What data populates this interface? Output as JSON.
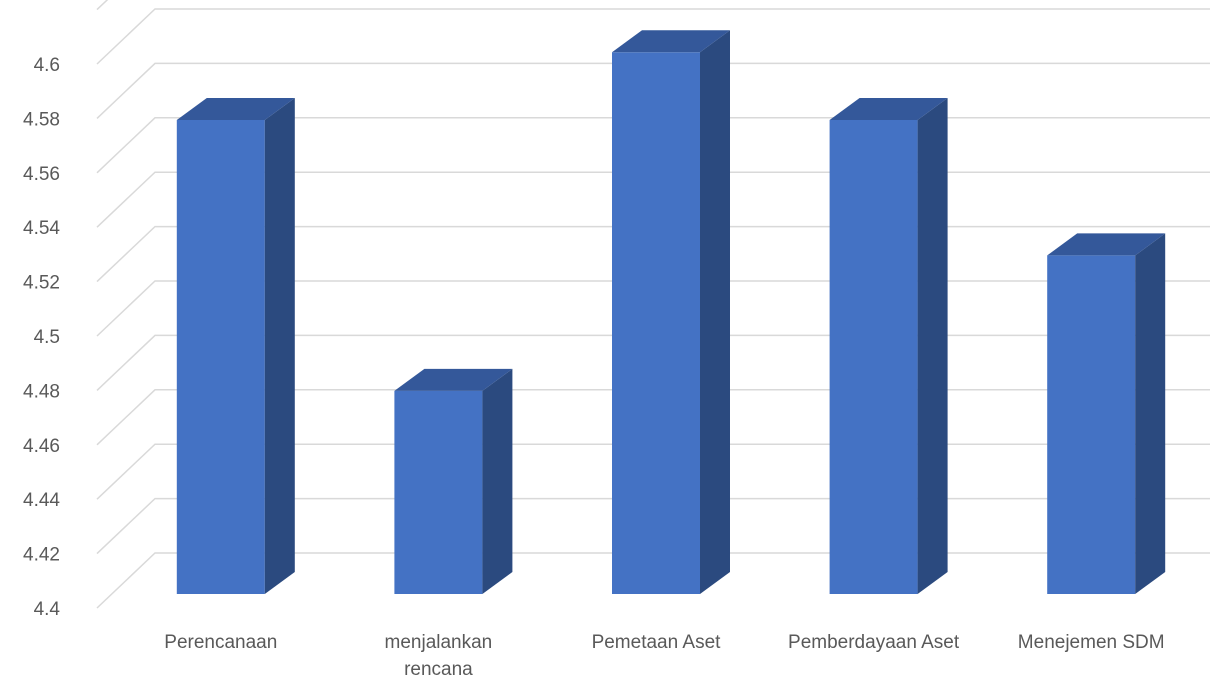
{
  "chart_data": {
    "type": "bar",
    "style": "3d-column",
    "categories": [
      "Perencanaan",
      "menjalankan rencana",
      "Pemetaan Aset",
      "Pemberdayaan Aset",
      "Menejemen SDM"
    ],
    "category_lines": [
      [
        "Perencanaan"
      ],
      [
        "menjalankan",
        "rencana"
      ],
      [
        "Pemetaan Aset"
      ],
      [
        "Pemberdayaan Aset"
      ],
      [
        "Menejemen SDM"
      ]
    ],
    "values": [
      4.575,
      4.475,
      4.6,
      4.575,
      4.525
    ],
    "ylim": [
      4.4,
      4.62
    ],
    "yticks": [
      "4.4",
      "4.42",
      "4.44",
      "4.46",
      "4.48",
      "4.5",
      "4.52",
      "4.54",
      "4.56",
      "4.58",
      "4.6"
    ],
    "grid": true,
    "legend": "none",
    "colors": {
      "front": "#4472c4",
      "side": "#2b4a7f",
      "top": "#34589a",
      "grid": "#d9d9d9",
      "text": "#595959"
    }
  }
}
